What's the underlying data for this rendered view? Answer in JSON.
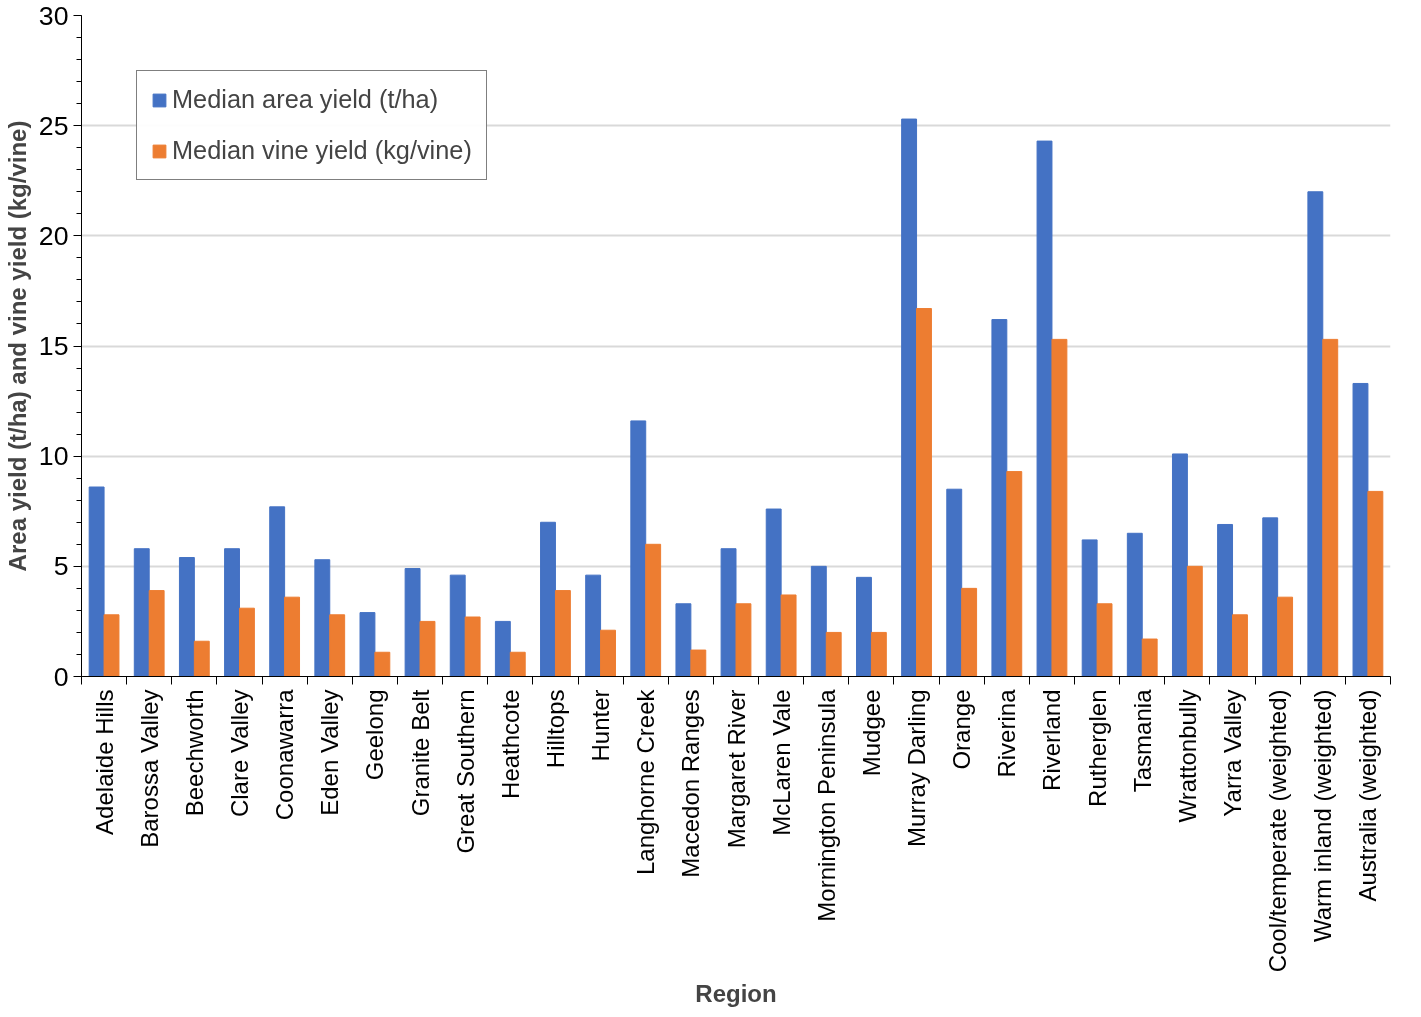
{
  "chart_data": {
    "type": "bar",
    "xlabel": "Region",
    "ylabel": "Area yield (t/ha) and vine yield (kg/vine)",
    "categories": [
      "Adelaide Hills",
      "Barossa Valley",
      "Beechworth",
      "Clare Valley",
      "Coonawarra",
      "Eden Valley",
      "Geelong",
      "Granite Belt",
      "Great Southern",
      "Heathcote",
      "Hilltops",
      "Hunter",
      "Langhorne Creek",
      "Macedon Ranges",
      "Margaret River",
      "McLaren Vale",
      "Mornington Peninsula",
      "Mudgee",
      "Murray Darling",
      "Orange",
      "Riverina",
      "Riverland",
      "Rutherglen",
      "Tasmania",
      "Wrattonbully",
      "Yarra Valley",
      "Cool/temperate (weighted)",
      "Warm inland (weighted)",
      "Australia (weighted)"
    ],
    "series": [
      {
        "name": "Median area yield (t/ha)",
        "color": "#4472c4",
        "values": [
          8.6,
          5.8,
          5.4,
          5.8,
          7.7,
          5.3,
          2.9,
          4.9,
          4.6,
          2.5,
          7.0,
          4.6,
          11.6,
          3.3,
          5.8,
          7.6,
          5.0,
          4.5,
          25.3,
          8.5,
          16.2,
          24.3,
          6.2,
          6.5,
          10.1,
          6.9,
          7.2,
          22.0,
          13.3
        ]
      },
      {
        "name": "Median vine yield (kg/vine)",
        "color": "#ed7d31",
        "values": [
          2.8,
          3.9,
          1.6,
          3.1,
          3.6,
          2.8,
          1.1,
          2.5,
          2.7,
          1.1,
          3.9,
          2.1,
          6.0,
          1.2,
          3.3,
          3.7,
          2.0,
          2.0,
          16.7,
          4.0,
          9.3,
          15.3,
          3.3,
          1.7,
          5.0,
          2.8,
          3.6,
          15.3,
          8.4
        ]
      }
    ],
    "ylim": [
      0,
      30
    ],
    "yticks": [
      0,
      5,
      10,
      15,
      20,
      25,
      30
    ],
    "grid": "y",
    "legend": "top left"
  }
}
